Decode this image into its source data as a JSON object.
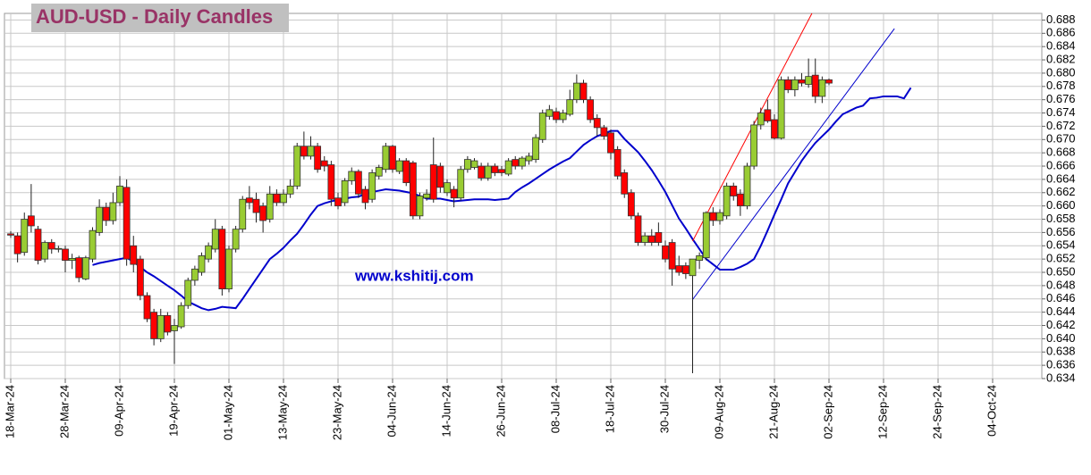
{
  "chart_data": {
    "type": "candlestick",
    "title": "AUD-USD - Daily Candles",
    "annotation": "www.kshitij.com",
    "categories": [
      "18-Mar-24",
      null,
      null,
      null,
      null,
      null,
      null,
      null,
      "28-Mar-24",
      null,
      null,
      null,
      null,
      null,
      null,
      null,
      "09-Apr-24",
      null,
      null,
      null,
      null,
      null,
      null,
      null,
      "19-Apr-24",
      null,
      null,
      null,
      null,
      null,
      null,
      null,
      "01-May-24",
      null,
      null,
      null,
      null,
      null,
      null,
      null,
      "13-May-24",
      null,
      null,
      null,
      null,
      null,
      null,
      null,
      "23-May-24",
      null,
      null,
      null,
      null,
      null,
      null,
      null,
      "04-Jun-24",
      null,
      null,
      null,
      null,
      null,
      null,
      null,
      "14-Jun-24",
      null,
      null,
      null,
      null,
      null,
      null,
      null,
      "26-Jun-24",
      null,
      null,
      null,
      null,
      null,
      null,
      null,
      "08-Jul-24",
      null,
      null,
      null,
      null,
      null,
      null,
      null,
      "18-Jul-24",
      null,
      null,
      null,
      null,
      null,
      null,
      null,
      "30-Jul-24",
      null,
      null,
      null,
      null,
      null,
      null,
      null,
      "09-Aug-24",
      null,
      null,
      null,
      null,
      null,
      null,
      null,
      "21-Aug-24",
      null,
      null,
      null,
      null,
      null,
      null,
      null,
      "02-Sep-24",
      null,
      null,
      null,
      null,
      null,
      null,
      null,
      "12-Sep-24",
      null,
      null,
      null,
      null,
      null,
      null,
      null,
      "24-Sep-24",
      null,
      null,
      null,
      null,
      null,
      null,
      null,
      "04-Oct-24"
    ],
    "open": [
      0.6558,
      0.6555,
      0.653,
      0.6585,
      0.6565,
      0.652,
      0.6545,
      0.6535,
      0.6535,
      0.6518,
      0.6522,
      0.649,
      0.652,
      0.656,
      0.6598,
      0.6578,
      0.6605,
      0.6628,
      0.654,
      0.652,
      0.6465,
      0.644,
      0.64,
      0.6435,
      0.6412,
      0.6418,
      0.645,
      0.6488,
      0.65,
      0.652,
      0.6535,
      0.6565,
      0.6475,
      0.6535,
      0.6565,
      0.6612,
      0.661,
      0.66,
      0.658,
      0.6618,
      0.6605,
      0.6618,
      0.663,
      0.669,
      0.6675,
      0.669,
      0.6668,
      0.6662,
      0.6612,
      0.6605,
      0.6638,
      0.6652,
      0.6625,
      0.661,
      0.6645,
      0.6655,
      0.669,
      0.6652,
      0.6668,
      0.6665,
      0.6585,
      0.6612,
      0.6662,
      0.666,
      0.662,
      0.6625,
      0.6612,
      0.6655,
      0.6658,
      0.666,
      0.6642,
      0.666,
      0.6655,
      0.6648,
      0.667,
      0.666,
      0.6668,
      0.667,
      0.67,
      0.6735,
      0.6742,
      0.673,
      0.6738,
      0.676,
      0.6785,
      0.676,
      0.6732,
      0.6718,
      0.671,
      0.6685,
      0.665,
      0.662,
      0.6585,
      0.6545,
      0.6555,
      0.656,
      0.654,
      0.6545,
      0.651,
      0.651,
      0.6495,
      0.6518,
      0.6522,
      0.659,
      0.6578,
      0.6585,
      0.663,
      0.6618,
      0.66,
      0.666,
      0.6722,
      0.6745,
      0.673,
      0.6702,
      0.679,
      0.6775,
      0.679,
      0.6783,
      0.6797,
      0.6765,
      0.679,
      null,
      null,
      null,
      null,
      null,
      null,
      null,
      null,
      null,
      null,
      null,
      null,
      null,
      null,
      null,
      null,
      null,
      null,
      null,
      null,
      null,
      null,
      null,
      null
    ],
    "high": [
      0.6562,
      0.656,
      0.659,
      0.6633,
      0.657,
      0.6548,
      0.655,
      0.654,
      0.654,
      0.6528,
      0.6525,
      0.6525,
      0.6568,
      0.661,
      0.6605,
      0.662,
      0.6645,
      0.664,
      0.6555,
      0.6525,
      0.647,
      0.6445,
      0.6445,
      0.644,
      0.643,
      0.6455,
      0.6492,
      0.651,
      0.653,
      0.6545,
      0.658,
      0.657,
      0.654,
      0.657,
      0.6615,
      0.663,
      0.662,
      0.6605,
      0.663,
      0.6625,
      0.6625,
      0.664,
      0.6695,
      0.6712,
      0.6705,
      0.6695,
      0.6675,
      0.6668,
      0.662,
      0.6642,
      0.6658,
      0.6655,
      0.663,
      0.6655,
      0.6662,
      0.6695,
      0.6692,
      0.6672,
      0.6672,
      0.6668,
      0.662,
      0.6625,
      0.6703,
      0.6665,
      0.664,
      0.663,
      0.666,
      0.6675,
      0.6672,
      0.6665,
      0.6665,
      0.6664,
      0.666,
      0.6672,
      0.6675,
      0.6675,
      0.668,
      0.6708,
      0.6745,
      0.6752,
      0.6748,
      0.6745,
      0.6775,
      0.6798,
      0.679,
      0.6765,
      0.6738,
      0.6722,
      0.6715,
      0.669,
      0.6655,
      0.6625,
      0.659,
      0.656,
      0.6565,
      0.6575,
      0.6548,
      0.655,
      0.6525,
      0.6515,
      0.652,
      0.653,
      0.6592,
      0.6598,
      0.6595,
      0.6635,
      0.6635,
      0.6625,
      0.6665,
      0.6728,
      0.6748,
      0.676,
      0.6738,
      0.6795,
      0.6795,
      0.6795,
      0.68,
      0.6822,
      0.6822,
      0.6795,
      0.6792,
      null,
      null,
      null,
      null,
      null,
      null,
      null,
      null,
      null,
      null,
      null,
      null,
      null,
      null,
      null,
      null,
      null,
      null,
      null,
      null,
      null,
      null,
      null,
      null
    ],
    "low": [
      0.6552,
      0.6515,
      0.6525,
      0.656,
      0.6512,
      0.6515,
      0.6528,
      0.653,
      0.65,
      0.6505,
      0.6485,
      0.6488,
      0.6515,
      0.6555,
      0.657,
      0.6572,
      0.66,
      0.651,
      0.65,
      0.6458,
      0.6425,
      0.639,
      0.6395,
      0.6405,
      0.6362,
      0.6415,
      0.6445,
      0.648,
      0.6495,
      0.6515,
      0.653,
      0.6465,
      0.647,
      0.653,
      0.656,
      0.6595,
      0.6575,
      0.656,
      0.6575,
      0.66,
      0.66,
      0.6612,
      0.6625,
      0.667,
      0.667,
      0.665,
      0.6652,
      0.66,
      0.6595,
      0.66,
      0.6632,
      0.6612,
      0.6595,
      0.6605,
      0.664,
      0.665,
      0.665,
      0.6648,
      0.663,
      0.658,
      0.658,
      0.6608,
      0.6605,
      0.662,
      0.6615,
      0.6598,
      0.6608,
      0.665,
      0.6655,
      0.6638,
      0.6638,
      0.6645,
      0.6645,
      0.6645,
      0.6655,
      0.6655,
      0.6662,
      0.6665,
      0.6695,
      0.673,
      0.6725,
      0.6725,
      0.6735,
      0.6755,
      0.6755,
      0.6725,
      0.6705,
      0.67,
      0.667,
      0.664,
      0.6612,
      0.658,
      0.654,
      0.654,
      0.654,
      0.654,
      0.6515,
      0.648,
      0.6495,
      0.649,
      0.6348,
      0.6505,
      0.6518,
      0.657,
      0.6572,
      0.658,
      0.6608,
      0.6585,
      0.6595,
      0.6655,
      0.6715,
      0.6725,
      0.67,
      0.67,
      0.677,
      0.6765,
      0.678,
      0.6778,
      0.6755,
      0.6755,
      0.6782,
      null,
      null,
      null,
      null,
      null,
      null,
      null,
      null,
      null,
      null,
      null,
      null,
      null,
      null,
      null,
      null,
      null,
      null,
      null,
      null,
      null,
      null,
      null,
      null
    ],
    "close": [
      0.6556,
      0.6528,
      0.658,
      0.657,
      0.6518,
      0.6545,
      0.6535,
      0.6536,
      0.6518,
      0.6521,
      0.6492,
      0.6522,
      0.6563,
      0.6598,
      0.6578,
      0.6605,
      0.663,
      0.652,
      0.6512,
      0.6465,
      0.643,
      0.64,
      0.6435,
      0.641,
      0.642,
      0.645,
      0.6488,
      0.6505,
      0.6525,
      0.654,
      0.6565,
      0.6475,
      0.6535,
      0.6565,
      0.661,
      0.6605,
      0.659,
      0.6578,
      0.6618,
      0.6605,
      0.6618,
      0.663,
      0.669,
      0.6675,
      0.669,
      0.6655,
      0.666,
      0.661,
      0.66,
      0.6638,
      0.6652,
      0.6618,
      0.6605,
      0.665,
      0.6658,
      0.669,
      0.6655,
      0.6668,
      0.6635,
      0.6585,
      0.6615,
      0.6618,
      0.661,
      0.6628,
      0.6635,
      0.6612,
      0.6655,
      0.667,
      0.6668,
      0.6642,
      0.666,
      0.665,
      0.665,
      0.6668,
      0.666,
      0.6672,
      0.6675,
      0.6703,
      0.674,
      0.6745,
      0.673,
      0.674,
      0.676,
      0.6785,
      0.676,
      0.673,
      0.6718,
      0.6705,
      0.668,
      0.6645,
      0.6618,
      0.6585,
      0.6545,
      0.6555,
      0.6545,
      0.6545,
      0.652,
      0.6505,
      0.65,
      0.6498,
      0.652,
      0.6525,
      0.659,
      0.6578,
      0.659,
      0.663,
      0.6615,
      0.66,
      0.666,
      0.6722,
      0.674,
      0.6728,
      0.6702,
      0.679,
      0.6775,
      0.679,
      0.6785,
      0.6795,
      0.6765,
      0.679,
      0.6785,
      null,
      null,
      null,
      null,
      null,
      null,
      null,
      null,
      null,
      null,
      null,
      null,
      null,
      null,
      null,
      null,
      null,
      null,
      null,
      null,
      null,
      null,
      null,
      null
    ],
    "up_color": "#99cc33",
    "down_color": "#ff0000",
    "moving_average": {
      "color": "#0000cc",
      "values": [
        null,
        null,
        null,
        null,
        null,
        null,
        null,
        null,
        null,
        null,
        null,
        null,
        0.6511,
        0.6514,
        0.6516,
        0.6518,
        0.652,
        0.6522,
        0.6516,
        0.6508,
        0.65,
        0.6494,
        0.6487,
        0.648,
        0.6473,
        0.6465,
        0.6456,
        0.6451,
        0.6446,
        0.6443,
        0.6445,
        0.6448,
        0.6447,
        0.6446,
        0.646,
        0.6475,
        0.649,
        0.6505,
        0.652,
        0.6528,
        0.6537,
        0.6548,
        0.6558,
        0.6572,
        0.6587,
        0.66,
        0.6604,
        0.6607,
        0.6609,
        0.6611,
        0.6613,
        0.6614,
        0.6618,
        0.6621,
        0.6623,
        0.6625,
        0.6624,
        0.6623,
        0.6621,
        0.6619,
        0.6615,
        0.6611,
        0.6611,
        0.6611,
        0.6609,
        0.6607,
        0.6608,
        0.6609,
        0.661,
        0.661,
        0.661,
        0.6609,
        0.661,
        0.6611,
        0.6621,
        0.6628,
        0.6634,
        0.6641,
        0.6648,
        0.6655,
        0.6661,
        0.6667,
        0.6672,
        0.6682,
        0.6692,
        0.6699,
        0.6705,
        0.6709,
        0.6713,
        0.6713,
        0.6701,
        0.6691,
        0.6681,
        0.6668,
        0.6654,
        0.6638,
        0.6621,
        0.6601,
        0.6581,
        0.6566,
        0.655,
        0.6535,
        0.652,
        0.6512,
        0.6504,
        0.6504,
        0.6504,
        0.6508,
        0.6513,
        0.652,
        0.654,
        0.6563,
        0.6587,
        0.661,
        0.6634,
        0.6651,
        0.6668,
        0.6682,
        0.6695,
        0.6705,
        0.6715,
        0.6727,
        0.6738,
        0.6743,
        0.6748,
        0.6751,
        0.6762,
        0.6763,
        0.6765,
        0.6765,
        0.6765,
        0.6762,
        0.6778,
        null,
        null,
        null,
        null,
        null,
        null,
        null,
        null,
        null,
        null,
        null,
        null
      ]
    },
    "trend_lines": [
      {
        "color": "#ff0000",
        "start": [
          100,
          0.6547
        ],
        "end": [
          117.5,
          0.689
        ]
      },
      {
        "color": "#0000cc",
        "start": [
          100,
          0.6459
        ],
        "end": [
          129.6,
          0.6867
        ]
      }
    ],
    "ylim": [
      0.634,
      0.689
    ],
    "yticks": [
      0.634,
      0.636,
      0.638,
      {
        "value": 0.64,
        "label": "0.640"
      },
      0.642,
      0.644,
      0.646,
      0.648,
      {
        "value": 0.65,
        "label": "0.650"
      },
      0.652,
      0.654,
      0.656,
      0.658,
      {
        "value": 0.66,
        "label": "0.660"
      },
      0.662,
      0.664,
      0.666,
      0.668,
      {
        "value": 0.67,
        "label": "0.670"
      },
      0.672,
      0.674,
      0.676,
      0.678,
      {
        "value": 0.68,
        "label": "0.680"
      },
      0.682,
      0.684,
      0.686,
      0.688
    ],
    "grid": true,
    "grid_color": "#c8c8c8"
  }
}
